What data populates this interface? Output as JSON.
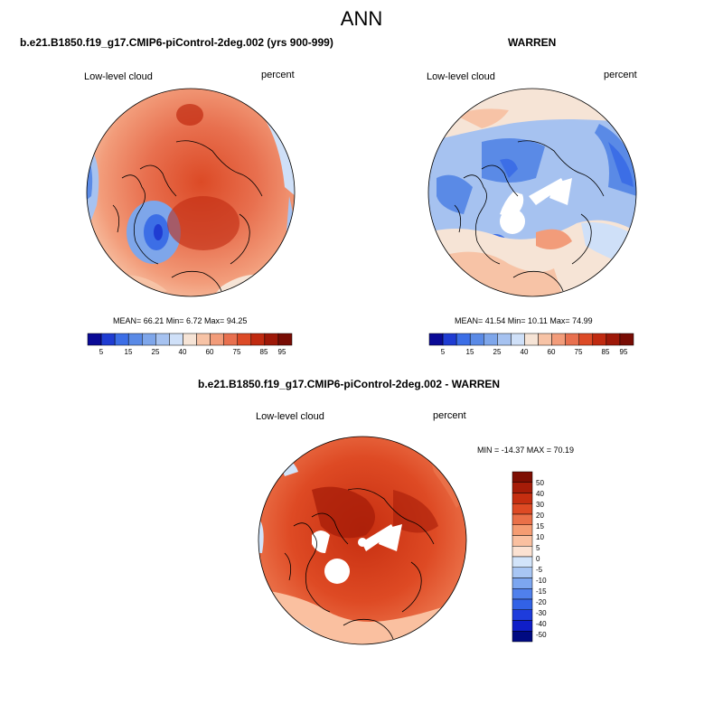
{
  "main_title": "ANN",
  "colors": {
    "abs_palette": [
      "#0a0a96",
      "#1f3cd2",
      "#3c6ee6",
      "#5a8ae6",
      "#7ea6ea",
      "#a6c2f0",
      "#cfe0f8",
      "#f6e4d6",
      "#f7c3a6",
      "#f29c7a",
      "#e8704f",
      "#dc4a26",
      "#c02a10",
      "#9e1808",
      "#780c04"
    ],
    "diff_palette": [
      "#000a82",
      "#0f1ec8",
      "#1e3cdc",
      "#3262e6",
      "#5080ec",
      "#7ca6f0",
      "#a8c6f4",
      "#d2e4fa",
      "#fce2d2",
      "#fac0a0",
      "#f59c72",
      "#ea7048",
      "#de4a24",
      "#c62e10",
      "#a61c08",
      "#7e0e02"
    ]
  },
  "panels": {
    "left": {
      "title": "b.e21.B1850.f19_g17.CMIP6-piControl-2deg.002 (yrs 900-999)",
      "variable": "Low-level cloud",
      "units": "percent",
      "stats": "MEAN=  66.21   Min=   6.72   Max=  94.25",
      "colorbar_labels": [
        "5",
        "15",
        "25",
        "40",
        "60",
        "75",
        "85",
        "95"
      ]
    },
    "right": {
      "title": "WARREN",
      "variable": "Low-level cloud",
      "units": "percent",
      "stats": "MEAN=  41.54   Min=  10.11   Max=  74.99",
      "colorbar_labels": [
        "5",
        "15",
        "25",
        "40",
        "60",
        "75",
        "85",
        "95"
      ]
    },
    "bottom": {
      "title": "b.e21.B1850.f19_g17.CMIP6-piControl-2deg.002 - WARREN",
      "variable": "Low-level cloud",
      "units": "percent",
      "stats": "MIN = -14.37 MAX =  70.19",
      "colorbar_labels": [
        "50",
        "40",
        "30",
        "20",
        "15",
        "10",
        "5",
        "0",
        "-5",
        "-10",
        "-15",
        "-20",
        "-30",
        "-40",
        "-50"
      ]
    }
  }
}
